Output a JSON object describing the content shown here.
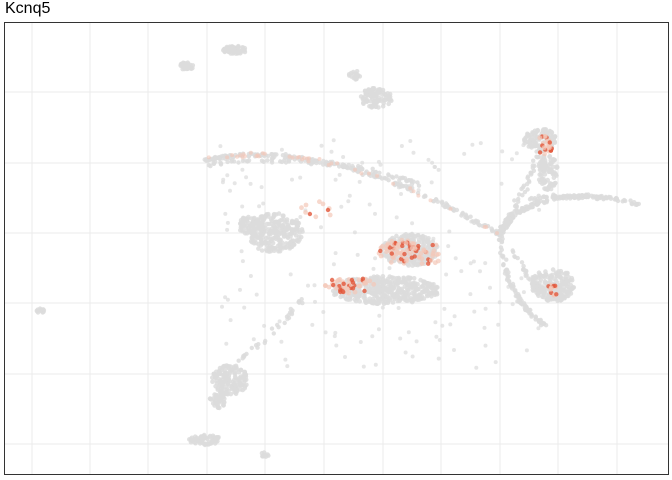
{
  "chart_data": {
    "type": "scatter",
    "title": "Kcnq5",
    "xlabel": "",
    "ylabel": "",
    "grid": true,
    "legend": "none",
    "colors": {
      "background_point": "#dcdcdc",
      "low_expression": "#f3c7b8",
      "high_expression": "#e2583b",
      "grid": "#ebebeb",
      "panel_border": "#333333"
    }
  }
}
